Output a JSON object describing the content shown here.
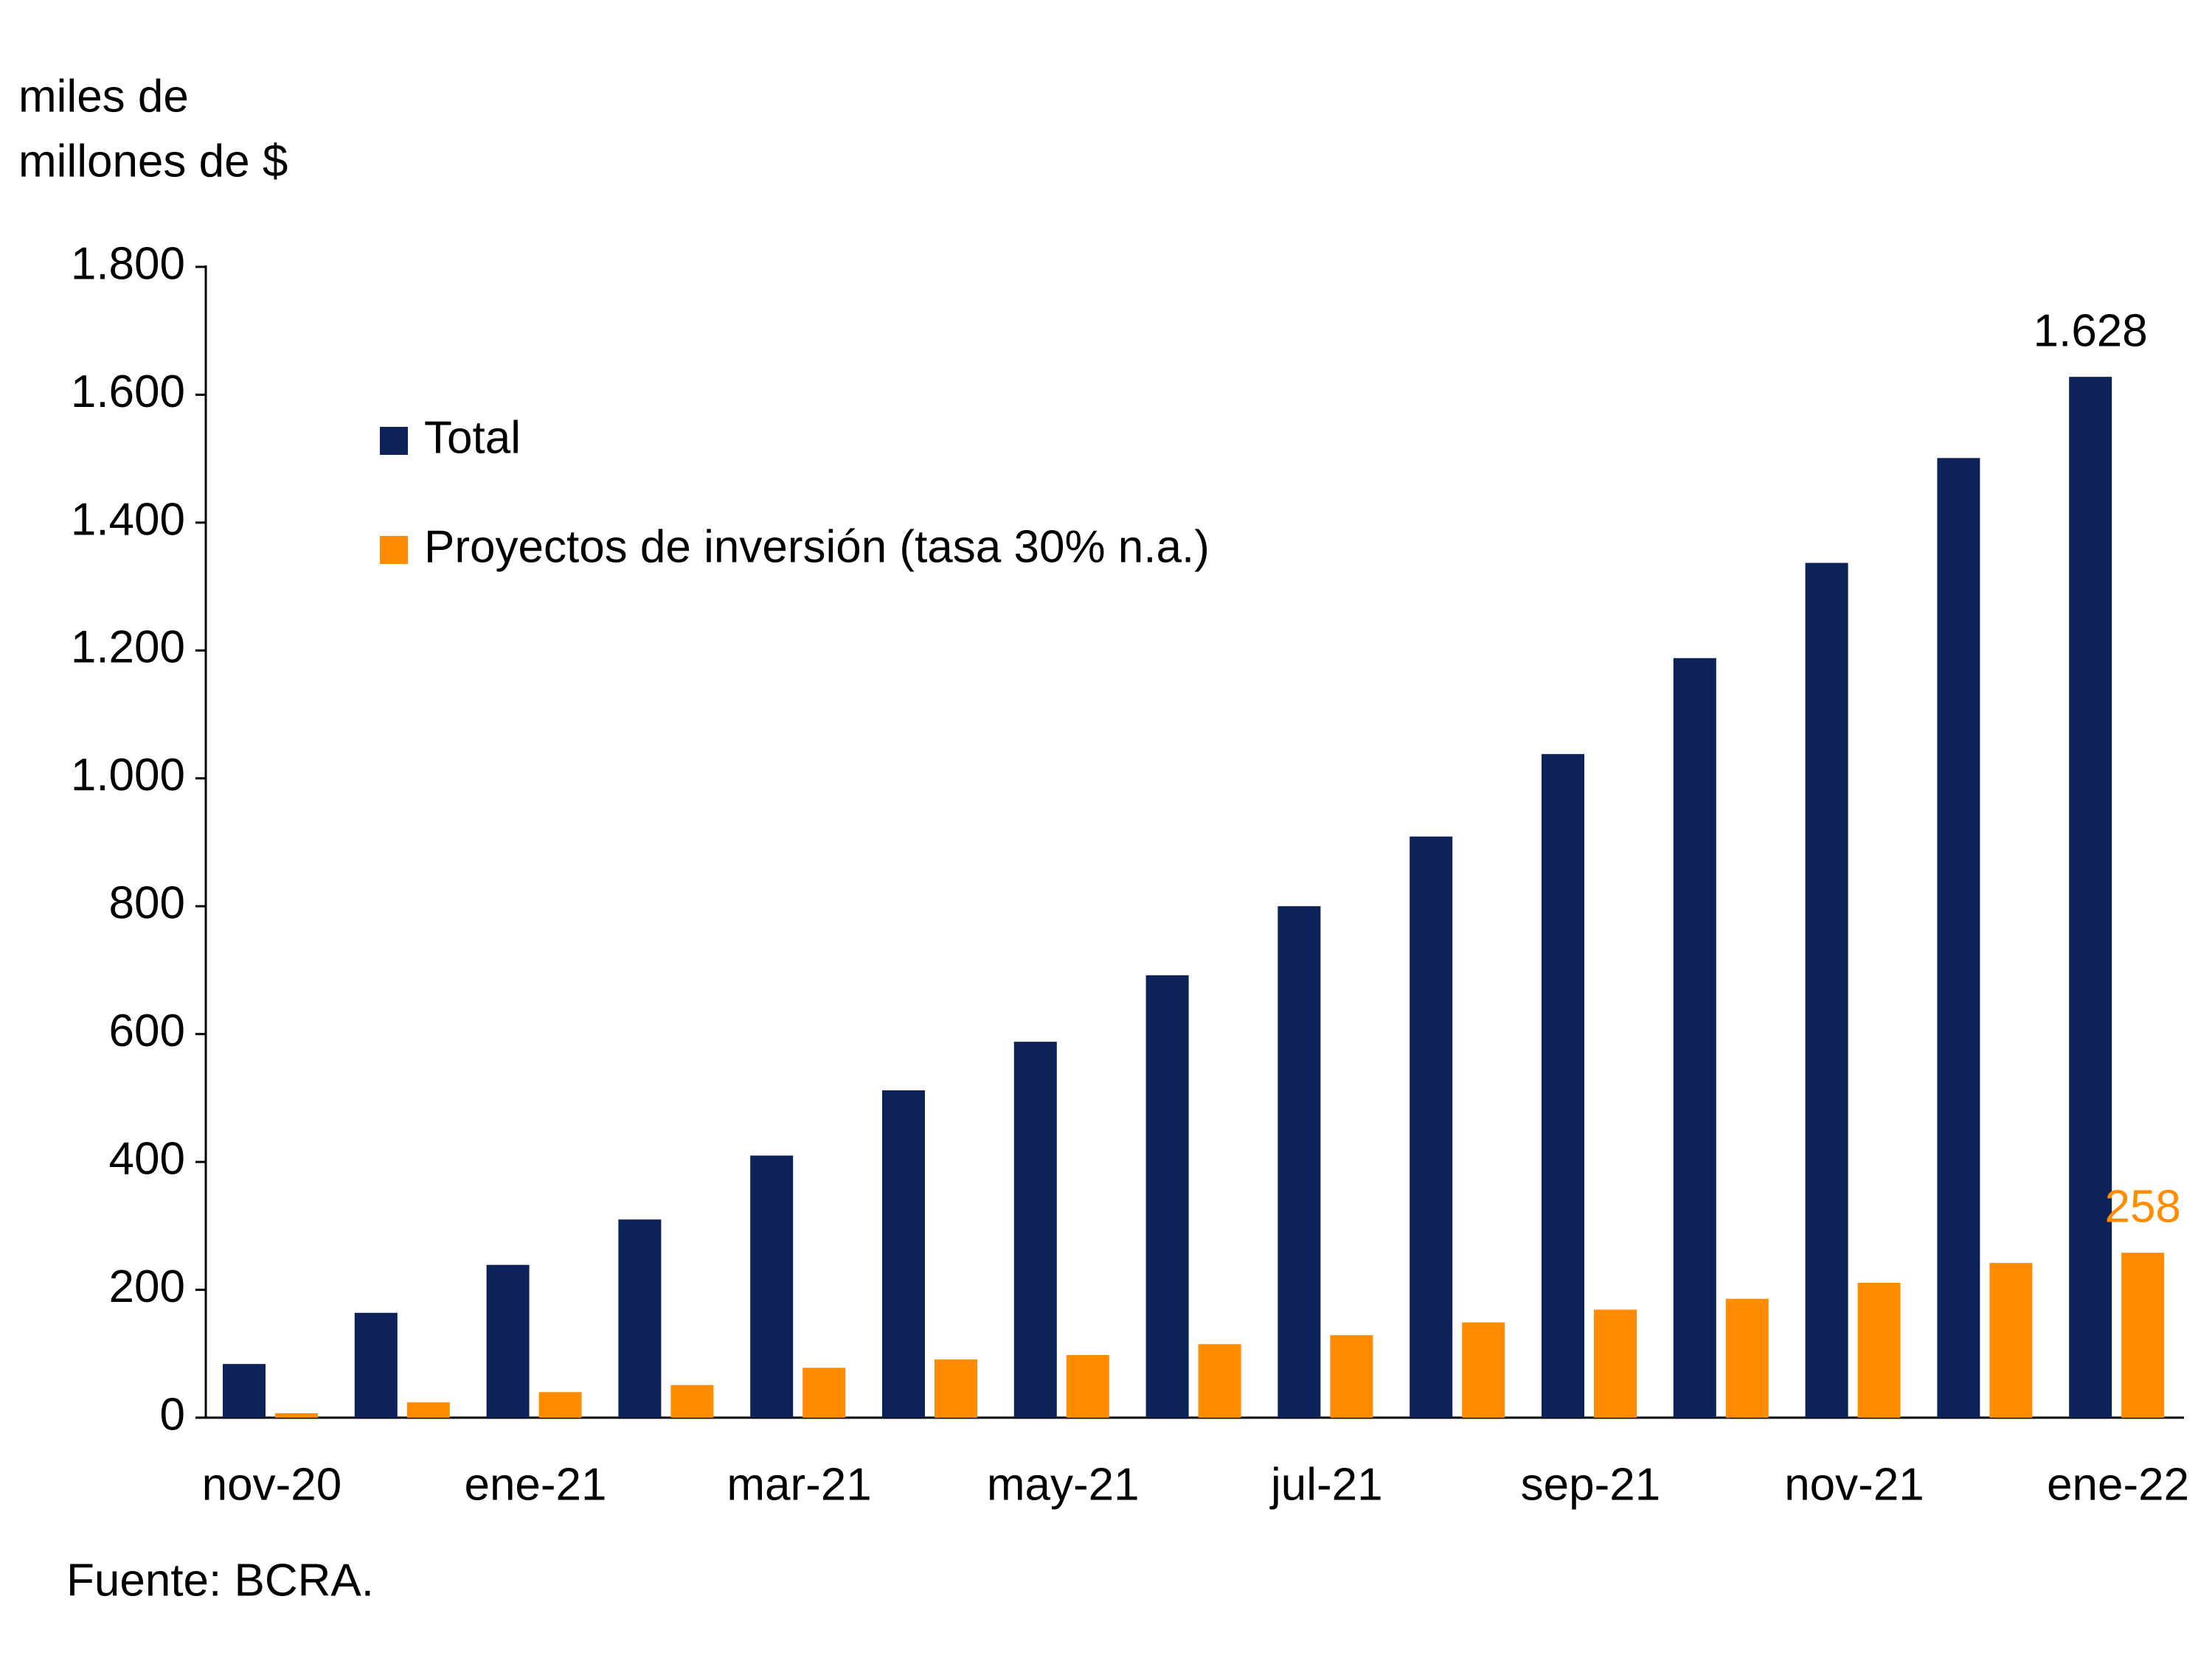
{
  "chart_data": {
    "type": "bar",
    "ylabel": [
      "miles de",
      "millones de $"
    ],
    "source": "Fuente: BCRA.",
    "categories": [
      "nov-20",
      null,
      "ene-21",
      null,
      "mar-21",
      null,
      "may-21",
      null,
      "jul-21",
      null,
      "sep-21",
      null,
      "nov-21",
      null,
      "ene-22"
    ],
    "series": [
      {
        "name": "Total",
        "color": "#0c2259",
        "values": [
          84,
          164,
          239,
          310,
          410,
          512,
          588,
          692,
          800,
          909,
          1038,
          1188,
          1337,
          1501,
          1628
        ],
        "value_labels": [
          null,
          null,
          null,
          null,
          null,
          null,
          null,
          null,
          null,
          null,
          null,
          null,
          null,
          null,
          "1.628"
        ]
      },
      {
        "name": "Proyectos de inversión (tasa 30% n.a.)",
        "color": "#ff8c00",
        "values": [
          7,
          24,
          40,
          51,
          78,
          91,
          98,
          115,
          129,
          149,
          169,
          186,
          211,
          242,
          258
        ],
        "value_labels": [
          null,
          null,
          null,
          null,
          null,
          null,
          null,
          null,
          null,
          null,
          null,
          null,
          null,
          null,
          "258"
        ]
      }
    ],
    "ylim": [
      0,
      1800
    ],
    "yticks": [
      0,
      200,
      400,
      600,
      800,
      {
        "value": 1000,
        "label": "1.000"
      },
      {
        "value": 1200,
        "label": "1.200"
      },
      {
        "value": 1400,
        "label": "1.400"
      },
      {
        "value": 1600,
        "label": "1.600"
      },
      {
        "value": 1800,
        "label": "1.800"
      }
    ],
    "grid": false,
    "legend": "upper left"
  }
}
